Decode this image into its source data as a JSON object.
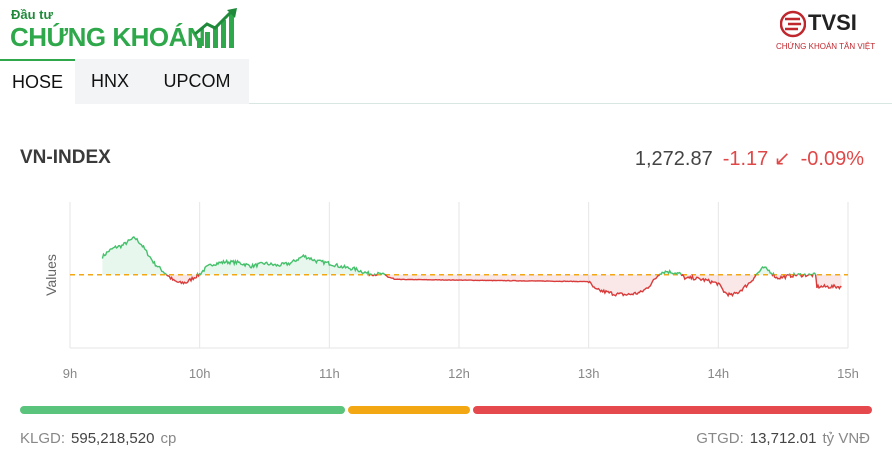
{
  "brand": {
    "small": "Đầu tư",
    "big": "CHỨNG KHOÁN",
    "partner_name": "TVSI",
    "partner_sub": "CHỨNG KHOÁN TÂN VIỆT"
  },
  "tabs": [
    {
      "label": "HOSE",
      "active": true
    },
    {
      "label": "HNX",
      "active": false
    },
    {
      "label": "UPCOM",
      "active": false
    }
  ],
  "index": {
    "name": "VN-INDEX",
    "value": "1,272.87",
    "change": "-1.17",
    "change_icon": "arrow-down-left-icon",
    "arrow_glyph": "↙",
    "percent": "-0.09%"
  },
  "chart_data": {
    "type": "line",
    "ylabel": "Values",
    "x_ticks": [
      "9h",
      "10h",
      "11h",
      "12h",
      "13h",
      "14h",
      "15h"
    ],
    "reference": 1274.04,
    "ylim": [
      1264,
      1284
    ],
    "points": [
      [
        9.25,
        1276.5
      ],
      [
        9.3,
        1277.3
      ],
      [
        9.35,
        1277.8
      ],
      [
        9.4,
        1278.0
      ],
      [
        9.45,
        1278.6
      ],
      [
        9.5,
        1279.1
      ],
      [
        9.55,
        1278.2
      ],
      [
        9.6,
        1276.9
      ],
      [
        9.65,
        1275.6
      ],
      [
        9.7,
        1274.8
      ],
      [
        9.75,
        1274.0
      ],
      [
        9.8,
        1273.2
      ],
      [
        9.85,
        1272.9
      ],
      [
        9.9,
        1273.0
      ],
      [
        9.95,
        1273.6
      ],
      [
        10.0,
        1274.1
      ],
      [
        10.05,
        1275.0
      ],
      [
        10.1,
        1275.5
      ],
      [
        10.2,
        1275.8
      ],
      [
        10.3,
        1275.7
      ],
      [
        10.4,
        1275.2
      ],
      [
        10.5,
        1275.6
      ],
      [
        10.6,
        1275.3
      ],
      [
        10.7,
        1275.6
      ],
      [
        10.8,
        1276.6
      ],
      [
        10.85,
        1276.3
      ],
      [
        10.9,
        1275.9
      ],
      [
        11.0,
        1275.6
      ],
      [
        11.1,
        1275.1
      ],
      [
        11.2,
        1274.8
      ],
      [
        11.3,
        1274.2
      ],
      [
        11.4,
        1274.1
      ],
      [
        11.45,
        1273.8
      ],
      [
        11.5,
        1273.4
      ],
      [
        12.0,
        1273.3
      ],
      [
        12.5,
        1273.2
      ],
      [
        13.0,
        1273.1
      ],
      [
        13.05,
        1272.0
      ],
      [
        13.1,
        1271.8
      ],
      [
        13.2,
        1271.4
      ],
      [
        13.3,
        1271.3
      ],
      [
        13.4,
        1271.6
      ],
      [
        13.45,
        1272.2
      ],
      [
        13.5,
        1273.2
      ],
      [
        13.55,
        1274.3
      ],
      [
        13.6,
        1274.5
      ],
      [
        13.7,
        1274.2
      ],
      [
        13.75,
        1273.5
      ],
      [
        13.8,
        1273.6
      ],
      [
        13.9,
        1273.3
      ],
      [
        14.0,
        1272.8
      ],
      [
        14.05,
        1271.6
      ],
      [
        14.1,
        1271.2
      ],
      [
        14.15,
        1271.6
      ],
      [
        14.2,
        1272.3
      ],
      [
        14.25,
        1273.1
      ],
      [
        14.3,
        1274.2
      ],
      [
        14.35,
        1275.0
      ],
      [
        14.4,
        1274.5
      ],
      [
        14.45,
        1273.6
      ],
      [
        14.5,
        1273.7
      ],
      [
        14.55,
        1273.9
      ],
      [
        14.6,
        1274.0
      ],
      [
        14.75,
        1274.0
      ],
      [
        14.76,
        1272.4
      ],
      [
        14.95,
        1272.4
      ]
    ]
  },
  "breadth": [
    {
      "label": "up",
      "fraction": 0.385,
      "color": "#5ac37c"
    },
    {
      "label": "unchanged",
      "fraction": 0.147,
      "color": "#f3a712"
    },
    {
      "label": "down",
      "fraction": 0.468,
      "color": "#e5484d"
    }
  ],
  "footer": {
    "volume_label": "KLGD:",
    "volume_value": "595,218,520",
    "volume_unit": "cp",
    "value_label": "GTGD:",
    "value_value": "13,712.01",
    "value_unit": "tỷ VNĐ"
  }
}
